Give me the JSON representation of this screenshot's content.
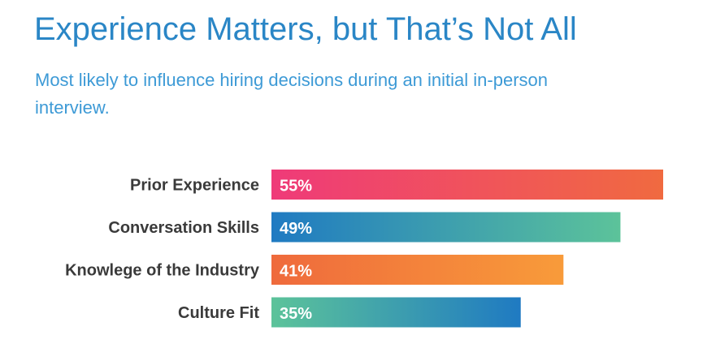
{
  "title": "Experience Matters, but That’s Not All",
  "subtitle": "Most likely to influence hiring decisions during an initial in-person interview.",
  "colors": {
    "title": "#2a86c6",
    "subtitle": "#3d9ad6",
    "label": "#3a3a3a",
    "value_text": "#ffffff"
  },
  "chart_data": {
    "type": "bar",
    "orientation": "horizontal",
    "categories": [
      "Prior Experience",
      "Conversation Skills",
      "Knowlege of the Industry",
      "Culture Fit"
    ],
    "values": [
      55,
      49,
      41,
      35
    ],
    "value_labels": [
      "55%",
      "49%",
      "41%",
      "35%"
    ],
    "unit": "%",
    "xlim": [
      0,
      55
    ],
    "grid": false,
    "legend": "none",
    "bar_gradients": [
      [
        "#ef3a79",
        "#f06a40"
      ],
      [
        "#1f7ac2",
        "#5cc39a"
      ],
      [
        "#ef6a3c",
        "#f89b3a"
      ],
      [
        "#5cc39a",
        "#1f7ac2"
      ]
    ]
  }
}
